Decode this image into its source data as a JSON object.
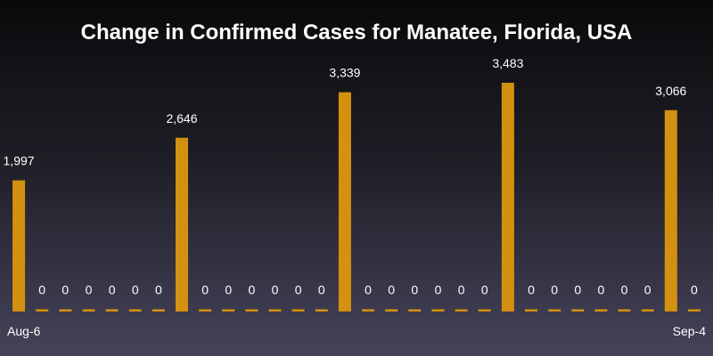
{
  "chart_data": {
    "type": "bar",
    "title": "Change in Confirmed Cases for Manatee, Florida, USA",
    "xlabel": "",
    "ylabel": "",
    "first_label": "Aug-6",
    "last_label": "Sep-4",
    "ylim": [
      0,
      3700
    ],
    "bar_color": "#d4900f",
    "values": [
      1997,
      0,
      0,
      0,
      0,
      0,
      0,
      2646,
      0,
      0,
      0,
      0,
      0,
      0,
      3339,
      0,
      0,
      0,
      0,
      0,
      0,
      3483,
      0,
      0,
      0,
      0,
      0,
      0,
      3066,
      0
    ],
    "value_labels": [
      "1,997",
      "0",
      "0",
      "0",
      "0",
      "0",
      "0",
      "2,646",
      "0",
      "0",
      "0",
      "0",
      "0",
      "0",
      "3,339",
      "0",
      "0",
      "0",
      "0",
      "0",
      "0",
      "3,483",
      "0",
      "0",
      "0",
      "0",
      "0",
      "0",
      "3,066",
      "0"
    ]
  }
}
